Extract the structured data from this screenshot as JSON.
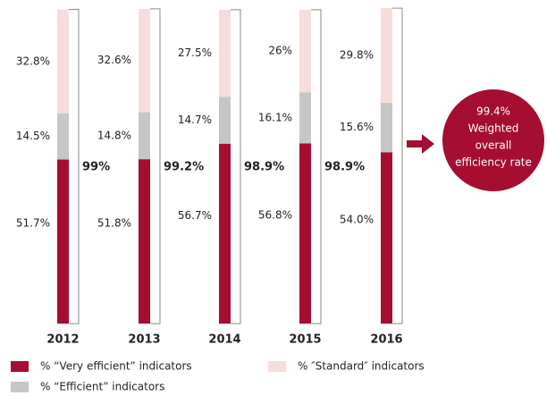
{
  "chart_data": {
    "type": "stacked_bar",
    "categories": [
      "2012",
      "2013",
      "2014",
      "2015",
      "2016"
    ],
    "series": [
      {
        "name": "% “Very efficient” indicators",
        "color": "#a50d31",
        "values": [
          51.7,
          51.8,
          56.7,
          56.8,
          54.0
        ],
        "value_labels": [
          "51.7%",
          "51.8%",
          "56.7%",
          "56.8%",
          "54.0%"
        ]
      },
      {
        "name": "% “Efficient” indicators",
        "color": "#c6c6c6",
        "values": [
          14.5,
          14.8,
          14.7,
          16.1,
          15.6
        ],
        "value_labels": [
          "14.5%",
          "14.8%",
          "14.7%",
          "16.1%",
          "15.6%"
        ]
      },
      {
        "name": "% ″Standard″ indicators",
        "color": "#f6dcda",
        "values": [
          32.8,
          32.6,
          27.5,
          26,
          29.8
        ],
        "value_labels": [
          "32.8%",
          "32.6%",
          "27.5%",
          "26%",
          "29.8%"
        ]
      }
    ],
    "totals": [
      99,
      99.2,
      98.9,
      98.9,
      null
    ],
    "total_labels": [
      "99%",
      "99.2%",
      "98.9%",
      "98.9%",
      null
    ],
    "callout": {
      "value": 99.4,
      "value_label": "99.4%",
      "lines": [
        "Weighted",
        "overall",
        "efficiency rate"
      ]
    }
  }
}
